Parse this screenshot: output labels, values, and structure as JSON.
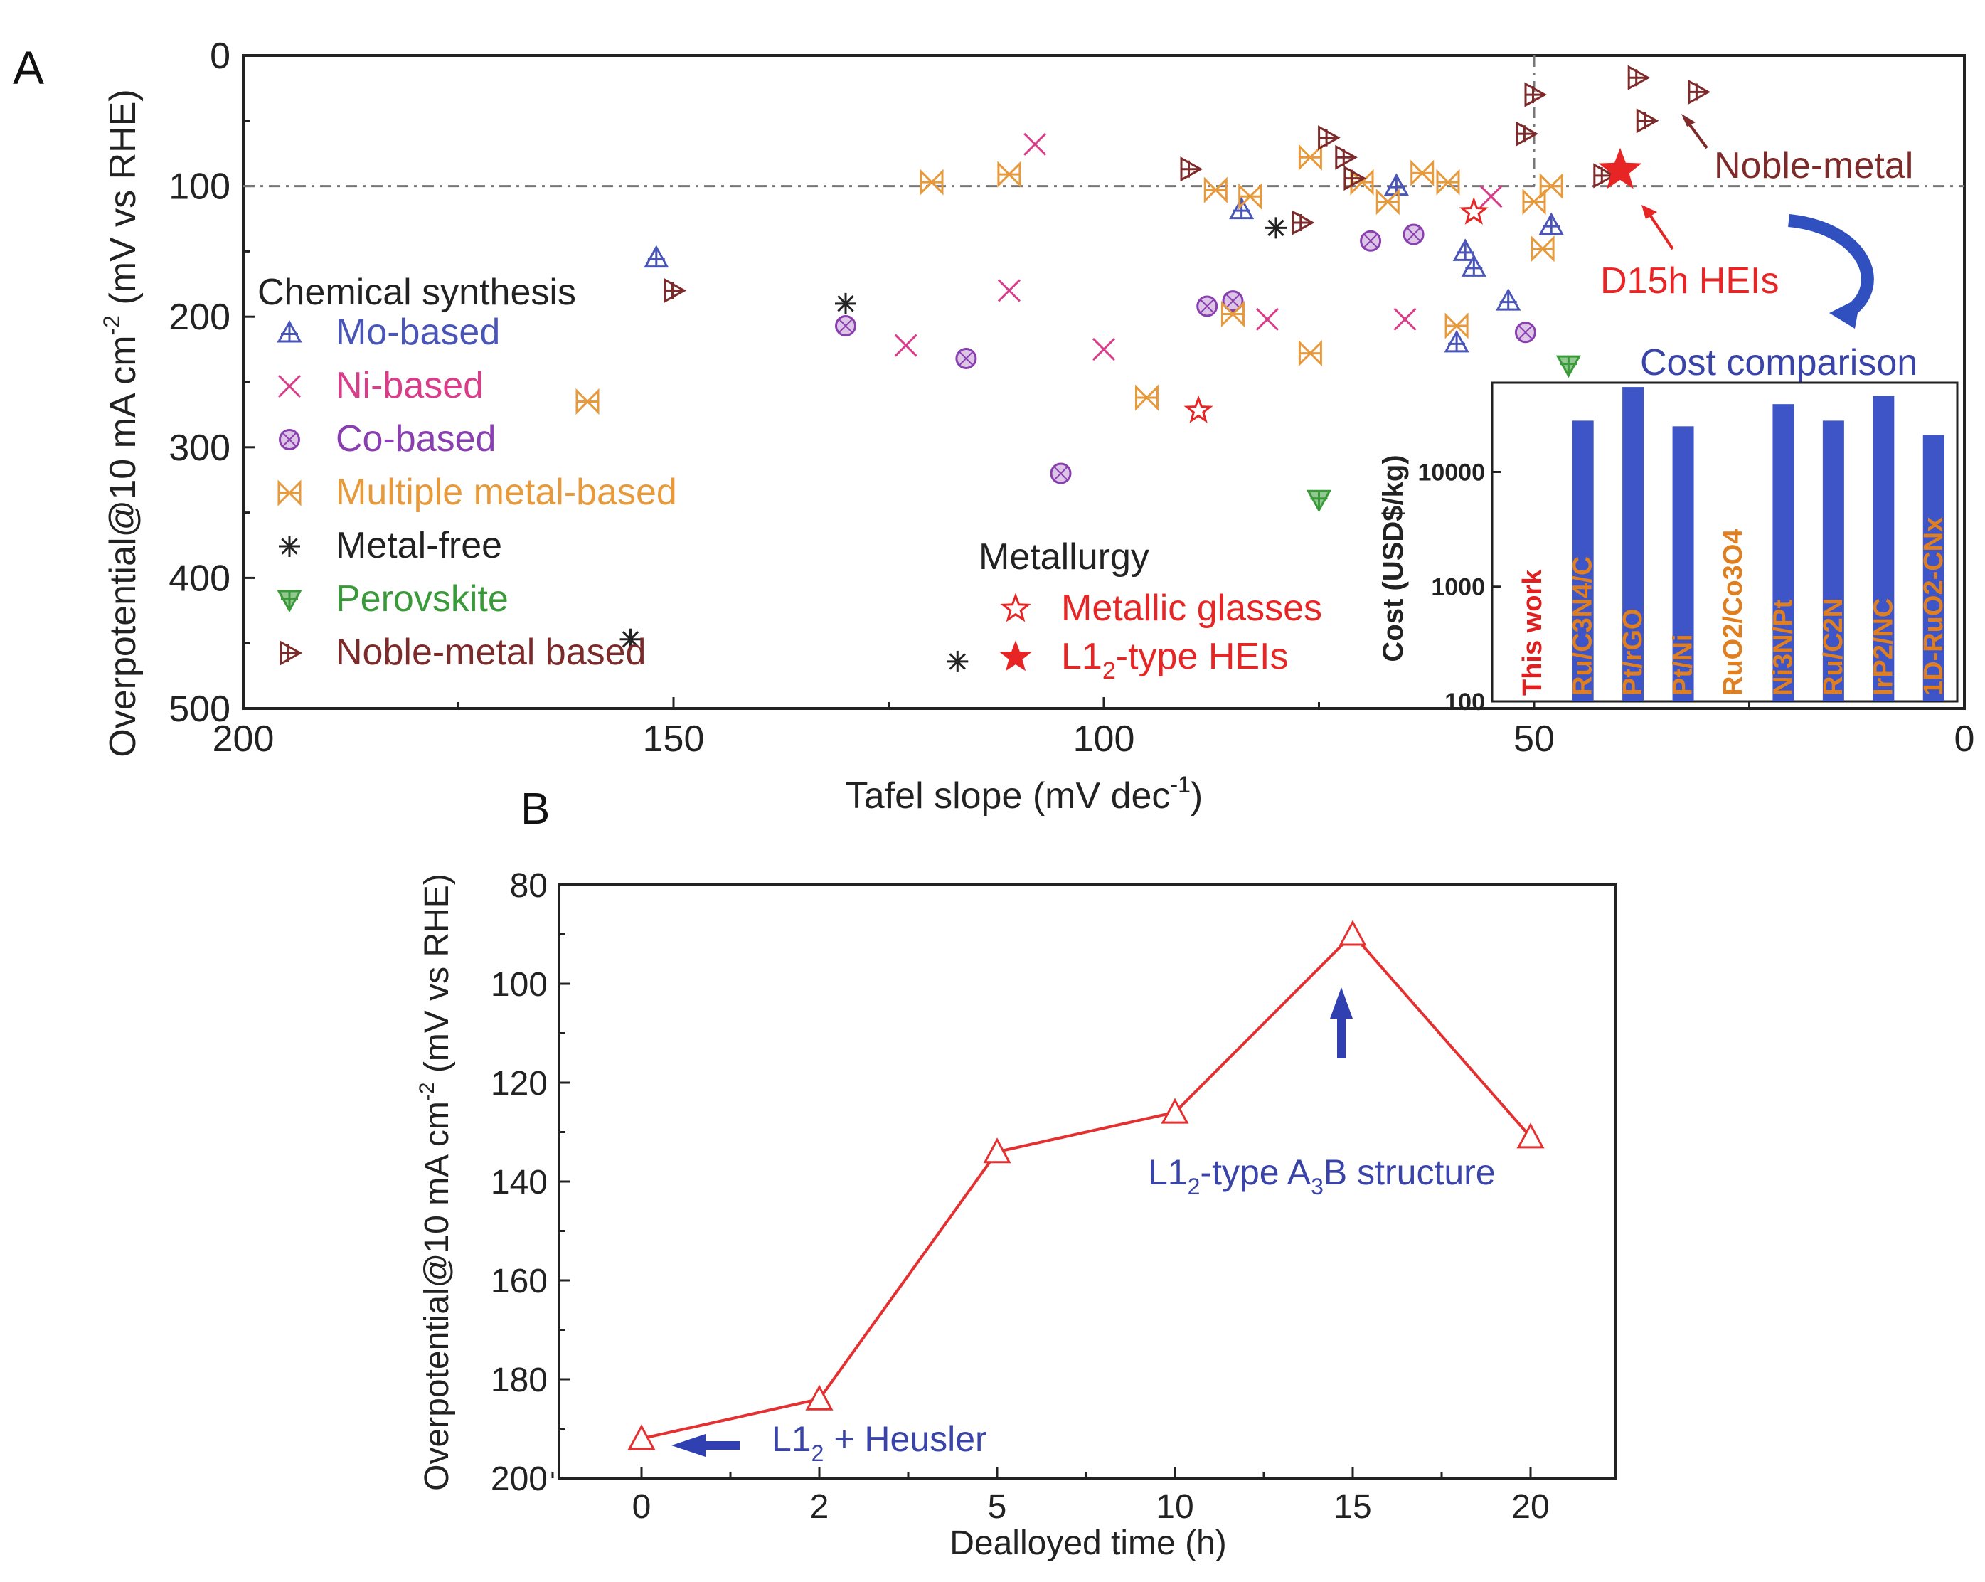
{
  "panels": {
    "a": "A",
    "b": "B"
  },
  "colors": {
    "mo": "#4a55b8",
    "ni": "#d93d8a",
    "co": "#8a3fb0",
    "multi": "#e79a3c",
    "free": "#222222",
    "perov": "#3a9a3a",
    "noble": "#7d2a2a",
    "hei": "#e82525",
    "bar": "#3e55c8",
    "barlabel": "#e07f20",
    "line": "#e43030",
    "note": "#3a44a8"
  },
  "chart_data": [
    {
      "id": "A",
      "type": "scatter",
      "title": "",
      "xlabel": "Tafel slope (mV dec",
      "xlabel_sup": "-1",
      "xlabel_end": ")",
      "ylabel": "Overpotential@10 mA cm",
      "ylabel_sup": "-2",
      "ylabel_end": " (mV vs RHE)",
      "xlim": [
        200,
        0
      ],
      "ylim": [
        500,
        0
      ],
      "x_ticks": [
        200,
        150,
        100,
        50,
        0
      ],
      "y_ticks": [
        0,
        100,
        200,
        300,
        400,
        500
      ],
      "reference_lines": {
        "y": 100,
        "x": 50
      },
      "legend_title_chem": "Chemical synthesis",
      "legend_title_met": "Metallurgy",
      "series": [
        {
          "name": "Mo-based",
          "key": "mo",
          "marker": "tri",
          "color": "#4a55b8",
          "points": [
            [
              152,
              155
            ],
            [
              84,
              118
            ],
            [
              66,
              100
            ],
            [
              58,
              150
            ],
            [
              57,
              162
            ],
            [
              53,
              188
            ],
            [
              48,
              130
            ],
            [
              59,
              220
            ]
          ]
        },
        {
          "name": "Ni-based",
          "key": "ni",
          "marker": "x",
          "color": "#d93d8a",
          "points": [
            [
              108,
              68
            ],
            [
              111,
              180
            ],
            [
              123,
              222
            ],
            [
              100,
              225
            ],
            [
              81,
              202
            ],
            [
              65,
              202
            ],
            [
              55,
              108
            ]
          ]
        },
        {
          "name": "Co-based",
          "key": "co",
          "marker": "circ",
          "color": "#8a3fb0",
          "points": [
            [
              130,
              207
            ],
            [
              116,
              232
            ],
            [
              105,
              320
            ],
            [
              88,
              192
            ],
            [
              85,
              188
            ],
            [
              69,
              142
            ],
            [
              64,
              137
            ],
            [
              51,
              212
            ]
          ]
        },
        {
          "name": "Multiple metal-based",
          "key": "multi",
          "marker": "bowtie",
          "color": "#e79a3c",
          "points": [
            [
              120,
              97
            ],
            [
              111,
              91
            ],
            [
              95,
              262
            ],
            [
              87,
              103
            ],
            [
              85,
              198
            ],
            [
              83,
              108
            ],
            [
              76,
              78
            ],
            [
              76,
              228
            ],
            [
              70,
              97
            ],
            [
              67,
              112
            ],
            [
              63,
              90
            ],
            [
              60,
              97
            ],
            [
              59,
              207
            ],
            [
              49,
              148
            ],
            [
              48,
              100
            ],
            [
              50,
              112
            ],
            [
              160,
              265
            ]
          ]
        },
        {
          "name": "Metal-free",
          "key": "free",
          "marker": "ast",
          "color": "#222222",
          "points": [
            [
              130,
              190
            ],
            [
              80,
              132
            ],
            [
              155,
              447
            ],
            [
              117,
              464
            ]
          ]
        },
        {
          "name": "Perovskite",
          "key": "perov",
          "marker": "vtri",
          "color": "#3a9a3a",
          "points": [
            [
              75,
              340
            ],
            [
              46,
              237
            ]
          ]
        },
        {
          "name": "Noble-metal based",
          "key": "noble",
          "marker": "rtri",
          "color": "#7d2a2a",
          "points": [
            [
              150,
              180
            ],
            [
              90,
              87
            ],
            [
              74,
              63
            ],
            [
              72,
              78
            ],
            [
              71,
              94
            ],
            [
              51,
              60
            ],
            [
              50,
              30
            ],
            [
              42,
              92
            ],
            [
              38,
              17
            ],
            [
              37,
              50
            ],
            [
              31,
              28
            ],
            [
              77,
              128
            ]
          ]
        },
        {
          "name": "Metallic glasses",
          "key": "mg",
          "marker": "ostar",
          "color": "#e82525",
          "points": [
            [
              89,
              272
            ],
            [
              57,
              120
            ]
          ]
        },
        {
          "name": "L1",
          "name_sub": "2",
          "name_end": "-type HEIs",
          "key": "hei",
          "marker": "fstar",
          "color": "#e82525",
          "points": [
            [
              40,
              88
            ]
          ]
        }
      ],
      "annotations": {
        "noble": "Noble-metal",
        "d15h": "D15h HEIs",
        "cost": "Cost comparison"
      },
      "inset": {
        "type": "bar",
        "ylabel": "Cost (USD$/kg)",
        "yscale": "log",
        "ylim": [
          100,
          60000
        ],
        "y_ticks": [
          "100",
          "1000",
          "10000"
        ],
        "categories": [
          "This work",
          "Ru/C3N4/C",
          "Pt/rGO",
          "Pt/Ni",
          "RuO2/Co3O4",
          "Ni3N/Pt",
          "Ru/C2N",
          "IrP2/NC",
          "1D-RuO2-CNx"
        ],
        "values": [
          100,
          28000,
          55000,
          25000,
          100,
          39000,
          28000,
          46000,
          21000
        ]
      }
    },
    {
      "id": "B",
      "type": "line",
      "title": "",
      "xlabel": "Dealloyed time (h)",
      "ylabel": "Overpotential@10 mA cm",
      "ylabel_sup": "-2",
      "ylabel_end": " (mV vs RHE)",
      "categories": [
        "0",
        "2",
        "5",
        "10",
        "15",
        "20"
      ],
      "values": [
        192,
        184,
        134,
        126,
        90,
        131
      ],
      "ylim": [
        200,
        80
      ],
      "y_ticks": [
        80,
        100,
        120,
        140,
        160,
        180,
        200
      ],
      "annotations": {
        "l12_heusler": {
          "pre": "L1",
          "sub": "2",
          "post": " + Heusler"
        },
        "l12_a3b": {
          "pre": "L1",
          "sub1": "2",
          "mid": "-type A",
          "sub2": "3",
          "post": "B structure"
        }
      }
    }
  ]
}
